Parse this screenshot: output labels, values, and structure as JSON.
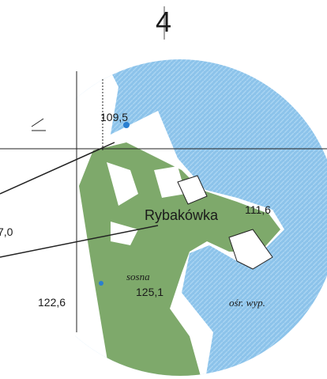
{
  "sheet_number": "4",
  "place_name": "Rybakówka",
  "spot_heights": [
    "109,5",
    "111,6",
    "7,0",
    "125,1",
    "122,6"
  ],
  "vegetation": "sosna",
  "facility": "ośr. wyp."
}
